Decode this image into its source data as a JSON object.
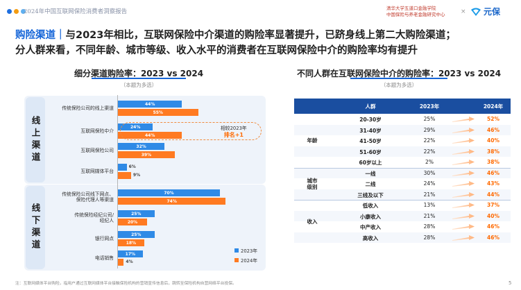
{
  "header": {
    "report_title": "2024年中国互联网保险消费者洞察报告",
    "partner_line1": "清华大学五道口金融学院",
    "partner_line2": "中国保险与养老金融研究中心",
    "times_sign": "×",
    "logo_text": "元保",
    "dot_colors": [
      "#1e6fe0",
      "#f39c12",
      "#5fb0f0"
    ]
  },
  "headline": {
    "key": "购险渠道",
    "separator": "｜",
    "line1_rest": "与2023年相比，互联网保险中介渠道的购险率显著提升，已跻身线上第二大购险渠道；",
    "line2": "分人群来看，不同年龄、城市等级、收入水平的消费者在互联网保险中介的购险率均有提升"
  },
  "chart_data": [
    {
      "type": "bar",
      "title": "细分渠道购险率：2023 vs 2024",
      "note": "（本题为多选）",
      "groups": [
        "线上渠道",
        "线下渠道"
      ],
      "categories": [
        "传统保险公司的线上渠道",
        "互联网保险中介",
        "互联网保险公司",
        "互联网媒体平台",
        "传统保险公司线下网点、保险代理人等渠道",
        "传统保险经纪公司/经纪人",
        "银行网点",
        "电话销售"
      ],
      "category_lines": [
        [
          "传统保险公司的线上渠道"
        ],
        [
          "互联网保险中介"
        ],
        [
          "互联网保险公司"
        ],
        [
          "互联网媒体平台"
        ],
        [
          "传统保险公司线下网点、",
          "保险代理人等渠道"
        ],
        [
          "传统保险经纪公司/",
          "经纪人"
        ],
        [
          "银行网点"
        ],
        [
          "电话销售"
        ]
      ],
      "series": [
        {
          "name": "2023年",
          "color": "#2f8ae6",
          "values": [
            44,
            24,
            32,
            6,
            70,
            25,
            25,
            17
          ]
        },
        {
          "name": "2024年",
          "color": "#ff7a21",
          "values": [
            55,
            44,
            39,
            9,
            74,
            20,
            18,
            4
          ]
        }
      ],
      "callout": {
        "line1": "相较2023年",
        "line2": "排名+1"
      },
      "ylim": [
        0,
        80
      ],
      "legend_position": "bottom-right"
    },
    {
      "type": "table",
      "title": "不同人群在互联网保险中介的购险率：2023 vs 2024",
      "note": "（本题为多选）",
      "columns": [
        "人群",
        "2023年",
        "2024年"
      ],
      "groups": [
        {
          "name": "年龄",
          "rows": [
            {
              "label": "20-30岁",
              "v2023": "25%",
              "v2024": "52%"
            },
            {
              "label": "31-40岁",
              "v2023": "29%",
              "v2024": "46%"
            },
            {
              "label": "41-50岁",
              "v2023": "22%",
              "v2024": "40%"
            },
            {
              "label": "51-60岁",
              "v2023": "22%",
              "v2024": "38%"
            },
            {
              "label": "60岁以上",
              "v2023": "2%",
              "v2024": "38%"
            }
          ]
        },
        {
          "name": "城市级别",
          "rows": [
            {
              "label": "一线",
              "v2023": "30%",
              "v2024": "46%"
            },
            {
              "label": "二线",
              "v2023": "24%",
              "v2024": "43%"
            },
            {
              "label": "三线及以下",
              "v2023": "21%",
              "v2024": "44%"
            }
          ]
        },
        {
          "name": "收入",
          "rows": [
            {
              "label": "低收入",
              "v2023": "13%",
              "v2024": "37%"
            },
            {
              "label": "小康收入",
              "v2023": "21%",
              "v2024": "40%"
            },
            {
              "label": "中产收入",
              "v2023": "28%",
              "v2024": "46%"
            },
            {
              "label": "高收入",
              "v2023": "28%",
              "v2024": "46%"
            }
          ]
        }
      ]
    }
  ],
  "footnote": "注：互联网媒体平台购险，指用户通过互联网媒体平台接触保险机构的营销宣传信息后，跳转至保险机构自营网络平台投保。",
  "page_number": "5"
}
